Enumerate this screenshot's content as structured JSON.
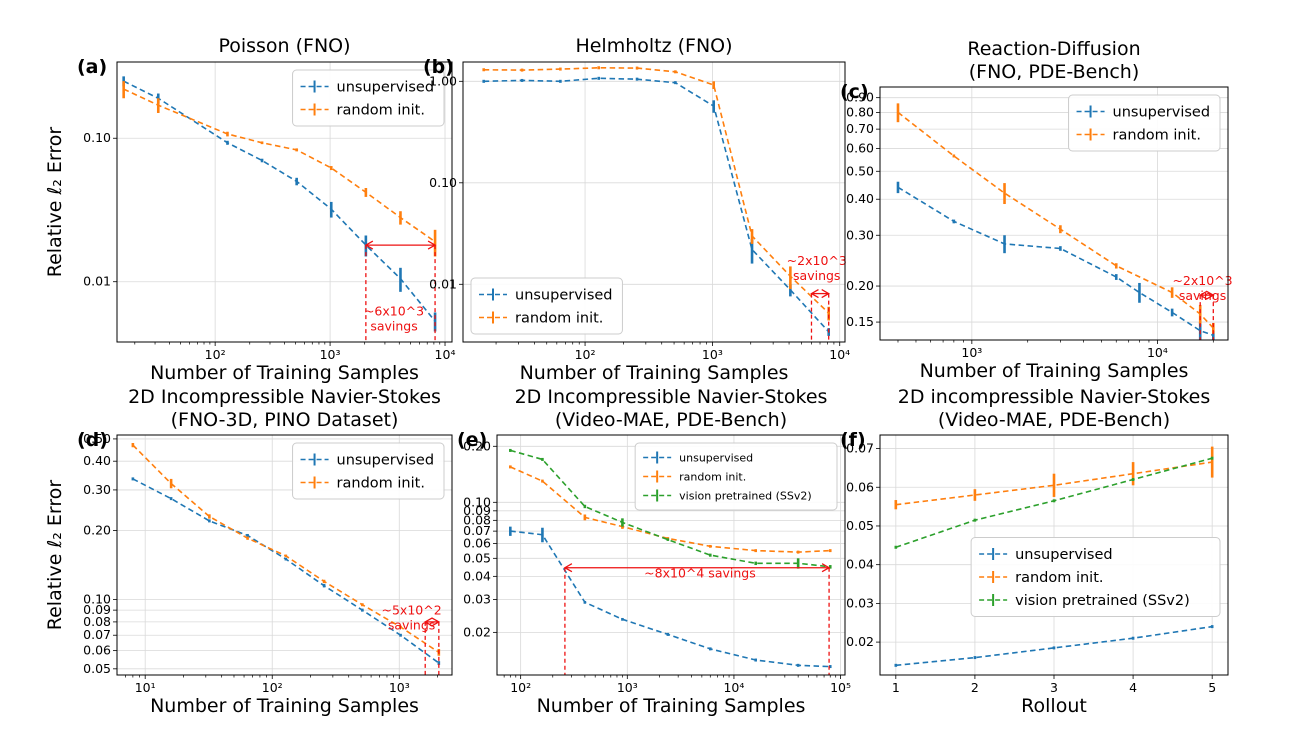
{
  "colors": {
    "unsupervised": "#1f77b4",
    "random": "#ff7f0e",
    "vision": "#2ca02c",
    "annotation": "#ee1111",
    "grid": "#d9d9d9"
  },
  "panels": [
    {
      "id": "a",
      "label": "(a)",
      "title": [
        "Poisson (FNO)"
      ],
      "xscale": "log",
      "yscale": "log",
      "xlim": [
        14,
        11500
      ],
      "ylim": [
        0.0038,
        0.34
      ],
      "xticks": [
        {
          "v": 100,
          "t": "10²"
        },
        {
          "v": 1000,
          "t": "10³"
        },
        {
          "v": 10000,
          "t": "10⁴"
        }
      ],
      "yticks": [
        {
          "v": 0.01,
          "t": "0.01"
        },
        {
          "v": 0.1,
          "t": "0.10"
        }
      ],
      "xlabel": "Number of Training Samples",
      "ylabel": "Relative ℓ₂ Error",
      "legend_pos": "top-right",
      "series": [
        {
          "name": "unsupervised",
          "color": "unsupervised",
          "x": [
            16,
            32,
            128,
            256,
            512,
            1024,
            2048,
            4096,
            8192
          ],
          "y": [
            0.25,
            0.19,
            0.093,
            0.07,
            0.05,
            0.032,
            0.018,
            0.0105,
            0.0053
          ],
          "err": [
            0.02,
            0.015,
            0.003,
            0.002,
            0.003,
            0.004,
            0.003,
            0.002,
            0.0008
          ]
        },
        {
          "name": "random init.",
          "color": "random",
          "x": [
            16,
            32,
            128,
            256,
            512,
            1024,
            2048,
            4096,
            8192
          ],
          "y": [
            0.22,
            0.17,
            0.107,
            0.093,
            0.083,
            0.062,
            0.042,
            0.028,
            0.019
          ],
          "err": [
            0.03,
            0.02,
            0.004,
            0.002,
            0.002,
            0.002,
            0.003,
            0.003,
            0.004
          ]
        }
      ],
      "annotation": {
        "text": [
          "~6x10^3",
          "savings"
        ],
        "x1": 2048,
        "x2": 8192,
        "y_arrow": 0.018,
        "y_text": 0.0058,
        "text_x": 3600,
        "vlines": [
          2048,
          8192
        ],
        "vbottom": 0.0038,
        "vtop": 0.018
      }
    },
    {
      "id": "b",
      "label": "(b)",
      "title": [
        "Helmholtz (FNO)"
      ],
      "xscale": "log",
      "yscale": "log",
      "xlim": [
        11,
        11000
      ],
      "ylim": [
        0.0027,
        1.55
      ],
      "xticks": [
        {
          "v": 100,
          "t": "10²"
        },
        {
          "v": 1000,
          "t": "10³"
        },
        {
          "v": 10000,
          "t": "10⁴"
        }
      ],
      "yticks": [
        {
          "v": 0.01,
          "t": "0.01"
        },
        {
          "v": 0.1,
          "t": "0.10"
        },
        {
          "v": 1,
          "t": "1.00"
        }
      ],
      "xlabel": "Number of Training Samples",
      "ylabel": "",
      "legend_pos": "bottom-left",
      "series": [
        {
          "name": "unsupervised",
          "color": "unsupervised",
          "x": [
            16,
            32,
            64,
            128,
            256,
            512,
            1024,
            2048,
            4096,
            8192
          ],
          "y": [
            1.0,
            1.02,
            1.0,
            1.07,
            1.05,
            0.97,
            0.57,
            0.022,
            0.0088,
            0.0034
          ],
          "err": [
            0.01,
            0.01,
            0.01,
            0.01,
            0.01,
            0.01,
            0.08,
            0.006,
            0.0012,
            0.0003
          ]
        },
        {
          "name": "random init.",
          "color": "random",
          "x": [
            16,
            32,
            64,
            128,
            256,
            512,
            1024,
            2048,
            4096,
            8192
          ],
          "y": [
            1.3,
            1.29,
            1.32,
            1.36,
            1.35,
            1.24,
            0.92,
            0.03,
            0.012,
            0.0052
          ],
          "err": [
            0.01,
            0.01,
            0.01,
            0.01,
            0.01,
            0.01,
            0.08,
            0.005,
            0.003,
            0.0008
          ]
        }
      ],
      "annotation": {
        "text": [
          "~2x10^3",
          "savings"
        ],
        "x1": 6000,
        "x2": 8192,
        "y_arrow": 0.0081,
        "y_text": 0.0155,
        "text_x": 6600,
        "vlines": [
          6000,
          8192
        ],
        "vbottom": 0.0027,
        "vtop": 0.0081
      }
    },
    {
      "id": "c",
      "label": "(c)",
      "title": [
        "Reaction-Diffusion",
        "(FNO, PDE-Bench)"
      ],
      "xscale": "log",
      "yscale": "log",
      "xlim": [
        320,
        24000
      ],
      "ylim": [
        0.13,
        0.98
      ],
      "xticks": [
        {
          "v": 1000,
          "t": "10³"
        },
        {
          "v": 10000,
          "t": "10⁴"
        }
      ],
      "yticks": [
        {
          "v": 0.15,
          "t": "0.15"
        },
        {
          "v": 0.2,
          "t": "0.20"
        },
        {
          "v": 0.3,
          "t": "0.30"
        },
        {
          "v": 0.4,
          "t": "0.40"
        },
        {
          "v": 0.5,
          "t": "0.50"
        },
        {
          "v": 0.6,
          "t": "0.60"
        },
        {
          "v": 0.7,
          "t": "0.70"
        },
        {
          "v": 0.8,
          "t": "0.80"
        },
        {
          "v": 0.9,
          "t": "0.90"
        }
      ],
      "xlabel": "Number of Training Samples",
      "ylabel": "",
      "legend_pos": "top-right",
      "series": [
        {
          "name": "unsupervised",
          "color": "unsupervised",
          "x": [
            400,
            800,
            1500,
            3000,
            6000,
            8000,
            12000,
            17000,
            20000
          ],
          "y": [
            0.44,
            0.335,
            0.28,
            0.27,
            0.215,
            0.19,
            0.162,
            0.14,
            0.135
          ],
          "err": [
            0.02,
            0.005,
            0.02,
            0.005,
            0.005,
            0.015,
            0.005,
            0.01,
            0.005
          ]
        },
        {
          "name": "random init.",
          "color": "random",
          "x": [
            400,
            800,
            1500,
            3000,
            6000,
            12000,
            17000,
            20000
          ],
          "y": [
            0.8,
            0.565,
            0.42,
            0.315,
            0.235,
            0.19,
            0.16,
            0.143
          ],
          "err": [
            0.06,
            0.005,
            0.035,
            0.01,
            0.005,
            0.008,
            0.012,
            0.006
          ]
        }
      ],
      "annotation": {
        "text": [
          "~2x10^3",
          "savings"
        ],
        "x1": 17000,
        "x2": 20000,
        "y_arrow": 0.186,
        "y_text": 0.202,
        "text_x": 17500,
        "vlines": [
          17000,
          20000
        ],
        "vbottom": 0.13,
        "vtop": 0.186
      }
    },
    {
      "id": "d",
      "label": "(d)",
      "title": [
        "2D Incompressible Navier-Stokes",
        "(FNO-3D, PINO Dataset)"
      ],
      "xscale": "log",
      "yscale": "log",
      "xlim": [
        6,
        2600
      ],
      "ylim": [
        0.047,
        0.52
      ],
      "xticks": [
        {
          "v": 10,
          "t": "10¹"
        },
        {
          "v": 100,
          "t": "10²"
        },
        {
          "v": 1000,
          "t": "10³"
        }
      ],
      "yticks": [
        {
          "v": 0.05,
          "t": "0.05"
        },
        {
          "v": 0.06,
          "t": "0.06"
        },
        {
          "v": 0.07,
          "t": "0.07"
        },
        {
          "v": 0.08,
          "t": "0.08"
        },
        {
          "v": 0.09,
          "t": "0.09"
        },
        {
          "v": 0.1,
          "t": "0.10"
        },
        {
          "v": 0.2,
          "t": "0.20"
        },
        {
          "v": 0.3,
          "t": "0.30"
        },
        {
          "v": 0.4,
          "t": "0.40"
        },
        {
          "v": 0.5,
          "t": "0.50"
        }
      ],
      "xlabel": "Number of Training Samples",
      "ylabel": "Relative ℓ₂ Error",
      "legend_pos": "top-right",
      "series": [
        {
          "name": "unsupervised",
          "color": "unsupervised",
          "x": [
            8,
            16,
            32,
            64,
            128,
            256,
            512,
            1024,
            2048
          ],
          "y": [
            0.335,
            0.275,
            0.22,
            0.19,
            0.15,
            0.115,
            0.09,
            0.07,
            0.053
          ],
          "err": [
            0.003,
            0.003,
            0.002,
            0.003,
            0.002,
            0.002,
            0.001,
            0.001,
            0.001
          ]
        },
        {
          "name": "random init.",
          "color": "random",
          "x": [
            8,
            16,
            32,
            64,
            128,
            256,
            512,
            1024,
            2048
          ],
          "y": [
            0.47,
            0.32,
            0.23,
            0.185,
            0.155,
            0.12,
            0.095,
            0.076,
            0.059
          ],
          "err": [
            0.01,
            0.015,
            0.005,
            0.003,
            0.002,
            0.002,
            0.001,
            0.001,
            0.002
          ]
        }
      ],
      "annotation": {
        "text": [
          "~5x10^2",
          "savings"
        ],
        "x1": 1600,
        "x2": 2048,
        "y_arrow": 0.08,
        "y_text": 0.086,
        "text_x": 1250,
        "vlines": [
          1600,
          2048
        ],
        "vbottom": 0.047,
        "vtop": 0.08
      }
    },
    {
      "id": "e",
      "label": "(e)",
      "title": [
        "2D Incompressible Navier-Stokes",
        "(Video-MAE, PDE-Bench)"
      ],
      "xscale": "log",
      "yscale": "log",
      "xlim": [
        60,
        110000
      ],
      "ylim": [
        0.0118,
        0.23
      ],
      "xticks": [
        {
          "v": 100,
          "t": "10²"
        },
        {
          "v": 1000,
          "t": "10³"
        },
        {
          "v": 10000,
          "t": "10⁴"
        },
        {
          "v": 100000,
          "t": "10⁵"
        }
      ],
      "yticks": [
        {
          "v": 0.02,
          "t": "0.02"
        },
        {
          "v": 0.03,
          "t": "0.03"
        },
        {
          "v": 0.04,
          "t": "0.04"
        },
        {
          "v": 0.05,
          "t": "0.05"
        },
        {
          "v": 0.06,
          "t": "0.06"
        },
        {
          "v": 0.07,
          "t": "0.07"
        },
        {
          "v": 0.08,
          "t": "0.08"
        },
        {
          "v": 0.09,
          "t": "0.09"
        },
        {
          "v": 0.1,
          "t": "0.10"
        },
        {
          "v": 0.2,
          "t": "0.20"
        }
      ],
      "xlabel": "Number of Training Samples",
      "ylabel": "",
      "legend_pos": "top-right",
      "legend_small": true,
      "series": [
        {
          "name": "unsupervised",
          "color": "unsupervised",
          "x": [
            80,
            160,
            400,
            900,
            2400,
            6000,
            16000,
            40000,
            80000
          ],
          "y": [
            0.07,
            0.067,
            0.029,
            0.0235,
            0.0195,
            0.0163,
            0.0142,
            0.0133,
            0.0131
          ],
          "err": [
            0.004,
            0.006,
            0.0005,
            0.0004,
            0.0003,
            0.0002,
            0.0002,
            0.0002,
            0.0002
          ]
        },
        {
          "name": "random init.",
          "color": "random",
          "x": [
            80,
            160,
            400,
            900,
            2400,
            6000,
            16000,
            40000,
            80000
          ],
          "y": [
            0.155,
            0.13,
            0.083,
            0.074,
            0.064,
            0.058,
            0.055,
            0.054,
            0.055
          ],
          "err": [
            0.002,
            0.002,
            0.003,
            0.002,
            0.001,
            0.001,
            0.001,
            0.001,
            0.001
          ]
        },
        {
          "name": "vision pretrained (SSv2)",
          "color": "vision",
          "x": [
            80,
            160,
            400,
            900,
            2400,
            6000,
            16000,
            40000,
            80000
          ],
          "y": [
            0.19,
            0.17,
            0.095,
            0.078,
            0.063,
            0.052,
            0.047,
            0.047,
            0.045
          ],
          "err": [
            0.002,
            0.002,
            0.002,
            0.004,
            0.001,
            0.001,
            0.001,
            0.003,
            0.001
          ]
        }
      ],
      "annotation": {
        "text": [
          "~8x10^4 savings"
        ],
        "x1": 260,
        "x2": 78000,
        "y_arrow": 0.0445,
        "y_text": 0.0395,
        "text_x": 4800,
        "vlines": [
          260,
          78000
        ],
        "vbottom": 0.0118,
        "vtop": 0.0445
      }
    },
    {
      "id": "f",
      "label": "(f)",
      "title": [
        "2D incompressible Navier-Stokes",
        "(Video-MAE, PDE-Bench)"
      ],
      "xscale": "linear",
      "yscale": "linear",
      "xlim": [
        0.8,
        5.2
      ],
      "ylim": [
        0.0115,
        0.0735
      ],
      "xticks": [
        {
          "v": 1,
          "t": "1"
        },
        {
          "v": 2,
          "t": "2"
        },
        {
          "v": 3,
          "t": "3"
        },
        {
          "v": 4,
          "t": "4"
        },
        {
          "v": 5,
          "t": "5"
        }
      ],
      "yticks": [
        {
          "v": 0.02,
          "t": "0.02"
        },
        {
          "v": 0.03,
          "t": "0.03"
        },
        {
          "v": 0.04,
          "t": "0.04"
        },
        {
          "v": 0.05,
          "t": "0.05"
        },
        {
          "v": 0.06,
          "t": "0.06"
        },
        {
          "v": 0.07,
          "t": "0.07"
        }
      ],
      "xlabel": "Rollout",
      "ylabel": "",
      "legend_pos": "center-right",
      "series": [
        {
          "name": "unsupervised",
          "color": "unsupervised",
          "x": [
            1,
            2,
            3,
            4,
            5
          ],
          "y": [
            0.014,
            0.016,
            0.0185,
            0.021,
            0.024
          ],
          "err": [
            0,
            0,
            0,
            0,
            0
          ]
        },
        {
          "name": "random init.",
          "color": "random",
          "x": [
            1,
            2,
            3,
            4,
            5
          ],
          "y": [
            0.0555,
            0.058,
            0.0605,
            0.0635,
            0.0665
          ],
          "err": [
            0.0012,
            0.0015,
            0.003,
            0.003,
            0.004
          ]
        },
        {
          "name": "vision pretrained (SSv2)",
          "color": "vision",
          "x": [
            1,
            2,
            3,
            4,
            5
          ],
          "y": [
            0.0445,
            0.0515,
            0.0565,
            0.062,
            0.0675
          ],
          "err": [
            0,
            0,
            0,
            0,
            0
          ]
        }
      ]
    }
  ]
}
